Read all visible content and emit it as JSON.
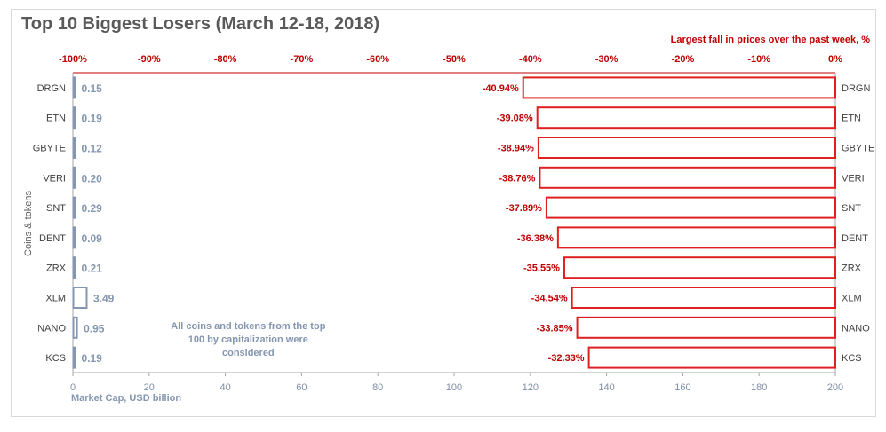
{
  "chart_data": {
    "type": "bar",
    "title": "Top 10 Biggest Losers (March 12-18, 2018)",
    "subtitle": "Largest fall in prices over the past week, %",
    "ylabel": "Coins & tokens",
    "xlabel": "Market Cap,  USD billion",
    "note": "All coins and tokens from the top 100 by capitalization were considered",
    "note_lines": [
      "All coins and tokens from the top",
      "100 by capitalization were",
      "considered"
    ],
    "categories": [
      "DRGN",
      "ETN",
      "GBYTE",
      "VERI",
      "SNT",
      "DENT",
      "ZRX",
      "XLM",
      "NANO",
      "KCS"
    ],
    "series": [
      {
        "name": "Market Cap,  USD billion",
        "axis": "bottom",
        "values": [
          0.15,
          0.19,
          0.12,
          0.2,
          0.29,
          0.09,
          0.21,
          3.49,
          0.95,
          0.19
        ],
        "labels": [
          "0.15",
          "0.19",
          "0.12",
          "0.20",
          "0.29",
          "0.09",
          "0.21",
          "3.49",
          "0.95",
          "0.19"
        ]
      },
      {
        "name": "Largest fall in prices over the past week, %",
        "axis": "top",
        "values": [
          -40.94,
          -39.08,
          -38.94,
          -38.76,
          -37.89,
          -36.38,
          -35.55,
          -34.54,
          -33.85,
          -32.33
        ],
        "labels": [
          "-40.94%",
          "-39.08%",
          "-38.94%",
          "-38.76%",
          "-37.89%",
          "-36.38%",
          "-35.55%",
          "-34.54%",
          "-33.85%",
          "-32.33%"
        ]
      }
    ],
    "x_bottom": {
      "range": [
        0,
        200
      ],
      "ticks": [
        "0",
        "20",
        "40",
        "60",
        "80",
        "100",
        "120",
        "140",
        "160",
        "180",
        "200"
      ]
    },
    "x_top": {
      "range": [
        -100,
        0
      ],
      "ticks": [
        "-100%",
        "-90%",
        "-80%",
        "-70%",
        "-60%",
        "-50%",
        "-40%",
        "-30%",
        "-20%",
        "-10%",
        "0%"
      ]
    },
    "colors": {
      "market_cap": "#8496b0",
      "price_fall": "#e02020",
      "top_axis": "#c00000",
      "text": "#595959"
    },
    "grid": false
  }
}
